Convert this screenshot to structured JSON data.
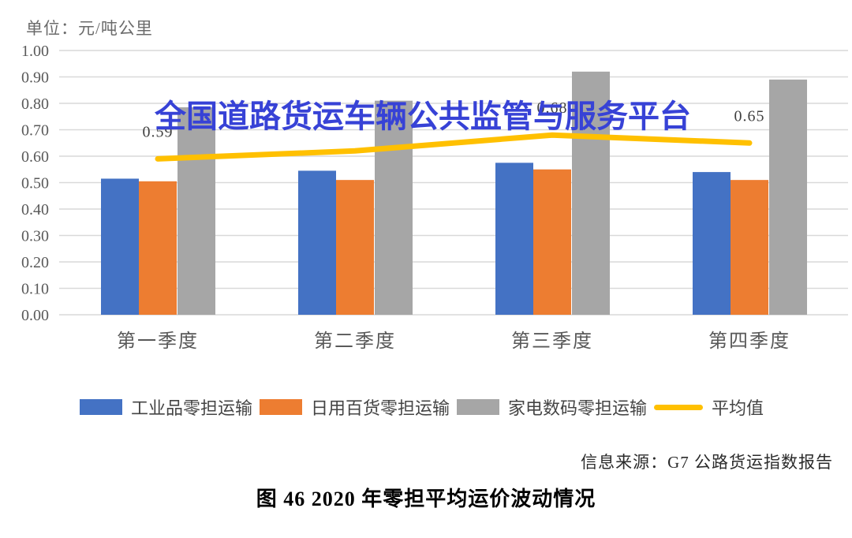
{
  "figure": {
    "unit_label": "单位：元/吨公里",
    "watermark_text": "全国道路货运车辆公共监管与服务平台",
    "source": "信息来源：G7 公路货运指数报告",
    "caption": "图 46  2020 年零担平均运价波动情况"
  },
  "colors": {
    "industrial_blue": "#4472C4",
    "daily_goods_orange": "#ED7D31",
    "appliance_gray": "#A6A6A6",
    "average_yellow": "#FFC000",
    "gridline": "#D9D9D9",
    "axis_text": "#595959",
    "data_label_text": "#404040",
    "watermark_blue": "#3742D6"
  },
  "chart_data": {
    "type": "bar",
    "overlay": "line",
    "title": "图 46  2020 年零担平均运价波动情况",
    "unit": "元/吨公里",
    "categories": [
      "第一季度",
      "第二季度",
      "第三季度",
      "第四季度"
    ],
    "series": [
      {
        "name": "工业品零担运输",
        "type": "bar",
        "color": "#4472C4",
        "values": [
          0.515,
          0.545,
          0.575,
          0.54
        ]
      },
      {
        "name": "日用百货零担运输",
        "type": "bar",
        "color": "#ED7D31",
        "values": [
          0.505,
          0.51,
          0.55,
          0.51
        ]
      },
      {
        "name": "家电数码零担运输",
        "type": "bar",
        "color": "#A6A6A6",
        "values": [
          0.785,
          0.81,
          0.92,
          0.89
        ]
      },
      {
        "name": "平均值",
        "type": "line",
        "color": "#FFC000",
        "values": [
          0.59,
          0.62,
          0.68,
          0.65
        ],
        "point_labels": [
          "0.59",
          "",
          "0.68",
          "0.65"
        ]
      }
    ],
    "ylim": [
      0.0,
      1.0
    ],
    "ytick_step": 0.1,
    "ytick_labels": [
      "0.00",
      "0.10",
      "0.20",
      "0.30",
      "0.40",
      "0.50",
      "0.60",
      "0.70",
      "0.80",
      "0.90",
      "1.00"
    ],
    "grid": true,
    "legend_position": "bottom"
  }
}
